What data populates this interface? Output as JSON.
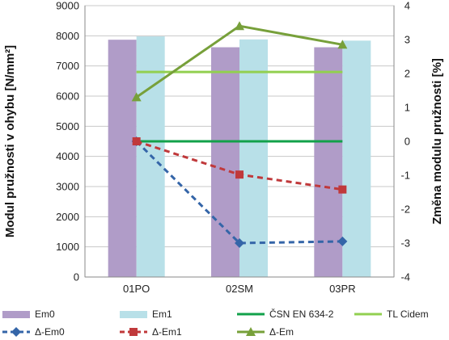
{
  "chart_data": {
    "type": "bar",
    "categories": [
      "01PO",
      "02SM",
      "03PR"
    ],
    "ylabel_left": "Modul pružnosti v ohybu [N/mm²]",
    "ylabel_right": "Změna modulu pružnosti [%]",
    "ylim_left": [
      0,
      9000
    ],
    "ylim_right": [
      -4,
      4
    ],
    "yticks_left": [
      "0",
      "1000",
      "2000",
      "3000",
      "4000",
      "5000",
      "6000",
      "7000",
      "8000",
      "9000"
    ],
    "yticks_right": [
      "-4",
      "-3",
      "-2",
      "-1",
      "0",
      "1",
      "2",
      "3",
      "4"
    ],
    "grid": true,
    "legend_position": "bottom",
    "bar_series": [
      {
        "name": "Em0",
        "values": [
          7870,
          7620,
          7620
        ],
        "color": "#b09cc8"
      },
      {
        "name": "Em1",
        "values": [
          7980,
          7880,
          7840
        ],
        "color": "#b8e0e8"
      }
    ],
    "reference_lines": [
      {
        "name": "ČSN EN 634-2",
        "value": 4500,
        "axis": "left",
        "color": "#12a14a"
      },
      {
        "name": "TL Cidem",
        "value": 6800,
        "axis": "left",
        "color": "#92d050"
      }
    ],
    "line_series": [
      {
        "name": "Δ-Em0",
        "values": [
          0,
          -3.0,
          -2.95
        ],
        "axis": "right",
        "color": "#3465a8",
        "marker": "diamond",
        "dash": true
      },
      {
        "name": "Δ-Em1",
        "values": [
          0,
          -0.98,
          -1.42
        ],
        "axis": "right",
        "color": "#c0393b",
        "marker": "square",
        "dash": true
      },
      {
        "name": "Δ-Em",
        "values": [
          1.3,
          3.4,
          2.85
        ],
        "axis": "right",
        "color": "#77a03a",
        "marker": "triangle",
        "dash": false
      }
    ]
  }
}
